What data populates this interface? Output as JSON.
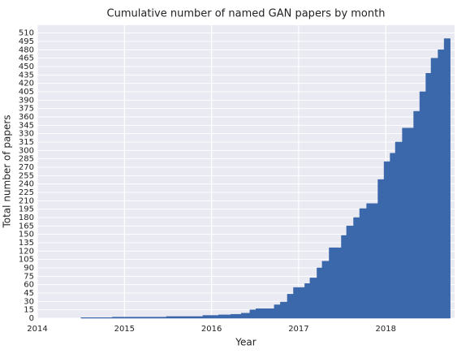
{
  "chart_data": {
    "type": "step",
    "title": "Cumulative number of named GAN papers by month",
    "xlabel": "Year",
    "ylabel": "Total number of papers",
    "color": "#3b67ab",
    "background": "#eaeaf2",
    "grid": true,
    "x": [
      2014.5,
      2014.86,
      2015.48,
      2015.9,
      2016.08,
      2016.22,
      2016.34,
      2016.44,
      2016.51,
      2016.72,
      2016.79,
      2016.87,
      2016.94,
      2017.07,
      2017.13,
      2017.21,
      2017.27,
      2017.35,
      2017.49,
      2017.55,
      2017.63,
      2017.7,
      2017.78,
      2017.91,
      2017.98,
      2018.05,
      2018.11,
      2018.19,
      2018.32,
      2018.39,
      2018.46,
      2018.52,
      2018.6,
      2018.67,
      2018.74
    ],
    "values": [
      1,
      2,
      3,
      5,
      6,
      7,
      9,
      15,
      17,
      24,
      29,
      43,
      55,
      62,
      72,
      90,
      102,
      126,
      148,
      165,
      180,
      196,
      205,
      248,
      280,
      295,
      315,
      340,
      370,
      405,
      438,
      465,
      480,
      500,
      500
    ],
    "xlim": [
      2014,
      2018.79
    ],
    "xticks": [
      2014,
      2015,
      2016,
      2017,
      2018
    ],
    "ylim": [
      0,
      524
    ],
    "yticks": [
      0,
      15,
      30,
      45,
      60,
      75,
      90,
      105,
      120,
      135,
      150,
      165,
      180,
      195,
      210,
      225,
      240,
      255,
      270,
      285,
      300,
      315,
      330,
      345,
      360,
      375,
      390,
      405,
      420,
      435,
      450,
      465,
      480,
      495,
      510
    ]
  }
}
